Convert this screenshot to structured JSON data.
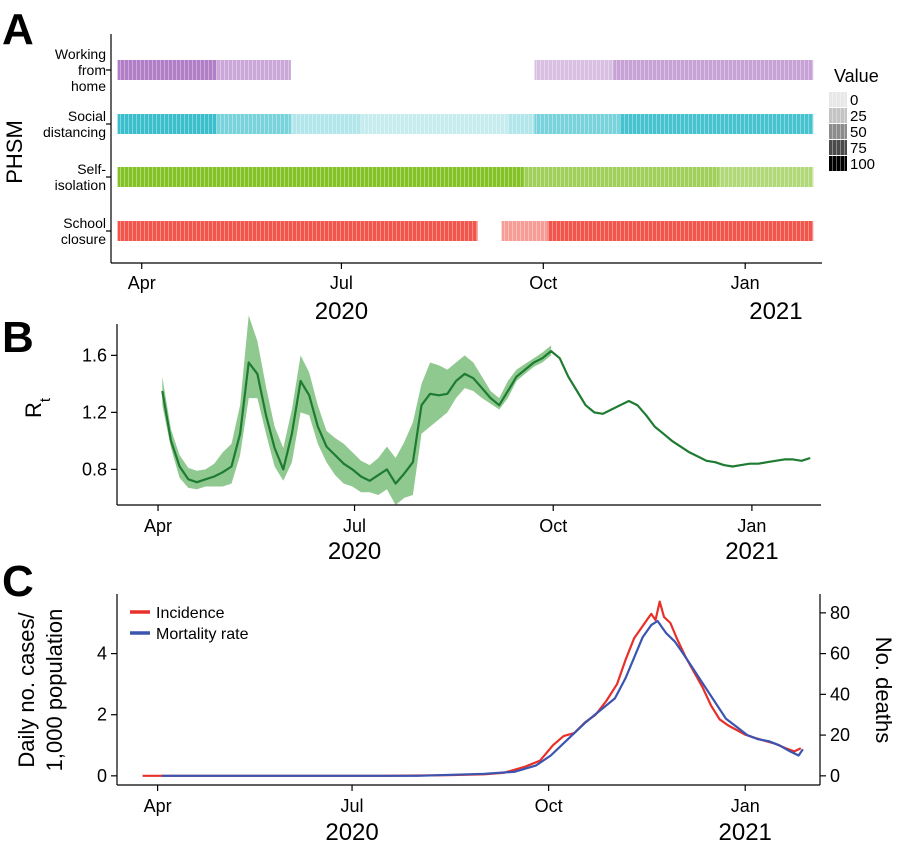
{
  "panels": [
    {
      "id": "A",
      "letter": "A"
    },
    {
      "id": "B",
      "letter": "B"
    },
    {
      "id": "C",
      "letter": "C"
    }
  ],
  "chart_data": [
    {
      "panel": "A",
      "type": "heatmap",
      "ylabel": "PHSM",
      "xlim": [
        "2020-03-18",
        "2021-02-05"
      ],
      "x_ticks": [
        {
          "date": "2020-04-01",
          "label": "Apr"
        },
        {
          "date": "2020-07-01",
          "label": "Jul"
        },
        {
          "date": "2020-10-01",
          "label": "Oct"
        },
        {
          "date": "2021-01-01",
          "label": "Jan"
        }
      ],
      "year_labels": [
        {
          "label": "2020",
          "date": "2020-07-01"
        },
        {
          "label": "2021",
          "date": "2021-01-15"
        }
      ],
      "legend": {
        "title": "Value",
        "placement": "right",
        "levels": [
          {
            "label": "0",
            "value": 0
          },
          {
            "label": "25",
            "value": 25
          },
          {
            "label": "50",
            "value": 50
          },
          {
            "label": "75",
            "value": 75
          },
          {
            "label": "100",
            "value": 100
          }
        ]
      },
      "rows": [
        {
          "lines": [
            "Working",
            "from",
            "home"
          ],
          "color": "#9b59b6",
          "segments": [
            {
              "start": "2020-03-21",
              "end": "2020-05-05",
              "value": 75
            },
            {
              "start": "2020-05-05",
              "end": "2020-06-08",
              "value": 45
            },
            {
              "start": "2020-09-27",
              "end": "2020-11-02",
              "value": 30
            },
            {
              "start": "2020-11-02",
              "end": "2021-02-01",
              "value": 50
            }
          ]
        },
        {
          "lines": [
            "Social",
            "distancing"
          ],
          "color": "#1fb5c4",
          "segments": [
            {
              "start": "2020-03-21",
              "end": "2020-05-05",
              "value": 85
            },
            {
              "start": "2020-05-05",
              "end": "2020-06-08",
              "value": 55
            },
            {
              "start": "2020-06-08",
              "end": "2020-07-10",
              "value": 25
            },
            {
              "start": "2020-07-10",
              "end": "2020-09-15",
              "value": 15
            },
            {
              "start": "2020-09-15",
              "end": "2020-09-27",
              "value": 25
            },
            {
              "start": "2020-09-27",
              "end": "2020-11-05",
              "value": 55
            },
            {
              "start": "2020-11-05",
              "end": "2021-02-01",
              "value": 80
            }
          ]
        },
        {
          "lines": [
            "Self-",
            "isolation"
          ],
          "color": "#7fbf1f",
          "segments": [
            {
              "start": "2020-03-21",
              "end": "2020-09-22",
              "value": 95
            },
            {
              "start": "2020-09-22",
              "end": "2020-12-20",
              "value": 70
            },
            {
              "start": "2020-12-20",
              "end": "2021-02-01",
              "value": 55
            }
          ]
        },
        {
          "lines": [
            "School",
            "closure"
          ],
          "color": "#f0443a",
          "segments": [
            {
              "start": "2020-03-21",
              "end": "2020-09-01",
              "value": 90
            },
            {
              "start": "2020-09-12",
              "end": "2020-10-03",
              "value": 45
            },
            {
              "start": "2020-10-03",
              "end": "2021-02-01",
              "value": 90
            }
          ]
        }
      ]
    },
    {
      "panel": "B",
      "type": "line",
      "ylabel": "R",
      "ylabel_sub": "t",
      "ylim": [
        0.55,
        1.82
      ],
      "y_ticks": [
        0.8,
        1.2,
        1.6
      ],
      "y_tick_labels": [
        "0.8",
        "1.2",
        "1.6"
      ],
      "xlim": [
        "2020-03-13",
        "2021-02-02"
      ],
      "x_ticks": [
        {
          "date": "2020-04-01",
          "label": "Apr"
        },
        {
          "date": "2020-07-01",
          "label": "Jul"
        },
        {
          "date": "2020-10-01",
          "label": "Oct"
        },
        {
          "date": "2021-01-01",
          "label": "Jan"
        }
      ],
      "year_labels": [
        {
          "label": "2020",
          "date": "2020-07-01"
        },
        {
          "label": "2021",
          "date": "2021-01-01"
        }
      ],
      "line_color": "#1e7b32",
      "band_color": "#7cbf7c",
      "series": [
        {
          "x": [
            "2020-04-03",
            "2020-04-07",
            "2020-04-11",
            "2020-04-15",
            "2020-04-19",
            "2020-04-23",
            "2020-04-27",
            "2020-05-01",
            "2020-05-05",
            "2020-05-09",
            "2020-05-13",
            "2020-05-17",
            "2020-05-21",
            "2020-05-25",
            "2020-05-29",
            "2020-06-02",
            "2020-06-06",
            "2020-06-10",
            "2020-06-14",
            "2020-06-18",
            "2020-06-22",
            "2020-06-26",
            "2020-06-30",
            "2020-07-04",
            "2020-07-08",
            "2020-07-12",
            "2020-07-16",
            "2020-07-20",
            "2020-07-24",
            "2020-07-28",
            "2020-08-01",
            "2020-08-05",
            "2020-08-09",
            "2020-08-13",
            "2020-08-17",
            "2020-08-21",
            "2020-08-25",
            "2020-08-29",
            "2020-09-02",
            "2020-09-06",
            "2020-09-10",
            "2020-09-14",
            "2020-09-18",
            "2020-09-22",
            "2020-09-26",
            "2020-09-30",
            "2020-10-04",
            "2020-10-08",
            "2020-10-12",
            "2020-10-16",
            "2020-10-20",
            "2020-10-24",
            "2020-10-28",
            "2020-11-01",
            "2020-11-05",
            "2020-11-09",
            "2020-11-13",
            "2020-11-17",
            "2020-11-21",
            "2020-11-25",
            "2020-11-29",
            "2020-12-03",
            "2020-12-07",
            "2020-12-11",
            "2020-12-15",
            "2020-12-19",
            "2020-12-23",
            "2020-12-27",
            "2020-12-31",
            "2021-01-04",
            "2021-01-08",
            "2021-01-12",
            "2021-01-16",
            "2021-01-20",
            "2021-01-24",
            "2021-01-28"
          ],
          "values": [
            1.35,
            1.0,
            0.82,
            0.73,
            0.71,
            0.73,
            0.75,
            0.78,
            0.82,
            1.05,
            1.55,
            1.47,
            1.18,
            0.95,
            0.8,
            1.05,
            1.42,
            1.32,
            1.1,
            0.96,
            0.9,
            0.84,
            0.8,
            0.75,
            0.72,
            0.76,
            0.8,
            0.7,
            0.77,
            0.85,
            1.25,
            1.33,
            1.32,
            1.33,
            1.42,
            1.47,
            1.44,
            1.37,
            1.3,
            1.25,
            1.35,
            1.45,
            1.5,
            1.55,
            1.58,
            1.63,
            1.58,
            1.45,
            1.35,
            1.25,
            1.2,
            1.19,
            1.22,
            1.25,
            1.28,
            1.25,
            1.18,
            1.1,
            1.05,
            1.0,
            0.96,
            0.92,
            0.89,
            0.86,
            0.85,
            0.83,
            0.82,
            0.83,
            0.84,
            0.84,
            0.85,
            0.86,
            0.87,
            0.87,
            0.86,
            0.88
          ]
        }
      ],
      "band": {
        "end": "2020-10-01",
        "lower": [
          1.25,
          0.95,
          0.74,
          0.67,
          0.66,
          0.68,
          0.68,
          0.68,
          0.7,
          0.9,
          1.3,
          1.3,
          1.05,
          0.82,
          0.72,
          0.85,
          1.2,
          1.18,
          0.98,
          0.85,
          0.76,
          0.7,
          0.68,
          0.64,
          0.64,
          0.62,
          0.66,
          0.55,
          0.6,
          0.62,
          1.05,
          1.1,
          1.15,
          1.2,
          1.3,
          1.37,
          1.35,
          1.3,
          1.26,
          1.22,
          1.3,
          1.42,
          1.47,
          1.52,
          1.55,
          1.6
        ],
        "upper": [
          1.45,
          1.08,
          0.9,
          0.81,
          0.79,
          0.8,
          0.84,
          0.92,
          0.98,
          1.25,
          1.88,
          1.7,
          1.38,
          1.1,
          0.95,
          1.22,
          1.6,
          1.48,
          1.25,
          1.07,
          1.02,
          0.98,
          0.92,
          0.86,
          0.83,
          0.88,
          0.96,
          0.88,
          0.99,
          1.13,
          1.4,
          1.55,
          1.53,
          1.5,
          1.55,
          1.6,
          1.55,
          1.45,
          1.35,
          1.3,
          1.42,
          1.5,
          1.54,
          1.58,
          1.62,
          1.67
        ]
      }
    },
    {
      "panel": "C",
      "type": "line",
      "ylabel_lines": [
        "Daily no. cases/",
        "1,000 population"
      ],
      "y2label": "No. deaths",
      "ylim": [
        -0.3,
        5.95
      ],
      "y_ticks": [
        0,
        2,
        4
      ],
      "y_tick_labels": [
        "0",
        "2",
        "4"
      ],
      "y2lim": [
        -4.5,
        89.25
      ],
      "y2_ticks": [
        0,
        20,
        40,
        60,
        80
      ],
      "y2_tick_labels": [
        "0",
        "20",
        "40",
        "60",
        "80"
      ],
      "xlim": [
        "2020-03-13",
        "2021-02-05"
      ],
      "x_ticks": [
        {
          "date": "2020-04-01",
          "label": "Apr"
        },
        {
          "date": "2020-07-01",
          "label": "Jul"
        },
        {
          "date": "2020-10-01",
          "label": "Oct"
        },
        {
          "date": "2021-01-01",
          "label": "Jan"
        }
      ],
      "year_labels": [
        {
          "label": "2020",
          "date": "2020-07-01"
        },
        {
          "label": "2021",
          "date": "2021-01-01"
        }
      ],
      "legend": {
        "placement": "top-left"
      },
      "series": [
        {
          "name": "Incidence",
          "color": "#e8302a",
          "axis": "left",
          "x": [
            "2020-03-25",
            "2020-04-15",
            "2020-05-15",
            "2020-06-15",
            "2020-07-15",
            "2020-08-15",
            "2020-09-01",
            "2020-09-10",
            "2020-09-20",
            "2020-09-27",
            "2020-10-03",
            "2020-10-08",
            "2020-10-13",
            "2020-10-18",
            "2020-10-23",
            "2020-10-28",
            "2020-11-02",
            "2020-11-06",
            "2020-11-10",
            "2020-11-14",
            "2020-11-18",
            "2020-11-20",
            "2020-11-22",
            "2020-11-24",
            "2020-11-27",
            "2020-11-30",
            "2020-12-04",
            "2020-12-08",
            "2020-12-12",
            "2020-12-16",
            "2020-12-20",
            "2020-12-24",
            "2020-12-28",
            "2021-01-01",
            "2021-01-05",
            "2021-01-10",
            "2021-01-15",
            "2021-01-20",
            "2021-01-24",
            "2021-01-27"
          ],
          "values": [
            0.0,
            0.0,
            0.0,
            0.0,
            0.0,
            0.02,
            0.05,
            0.1,
            0.3,
            0.5,
            1.0,
            1.3,
            1.4,
            1.75,
            2.0,
            2.45,
            3.0,
            3.8,
            4.5,
            4.9,
            5.3,
            5.1,
            5.7,
            5.2,
            5.0,
            4.5,
            3.9,
            3.4,
            2.9,
            2.3,
            1.85,
            1.65,
            1.5,
            1.35,
            1.25,
            1.15,
            1.05,
            0.9,
            0.8,
            0.9
          ]
        },
        {
          "name": "Mortality rate",
          "color": "#3b54b0",
          "axis": "right",
          "x": [
            "2020-04-03",
            "2020-05-01",
            "2020-06-01",
            "2020-07-01",
            "2020-08-01",
            "2020-09-01",
            "2020-09-15",
            "2020-09-25",
            "2020-10-02",
            "2020-10-10",
            "2020-10-18",
            "2020-10-25",
            "2020-11-01",
            "2020-11-06",
            "2020-11-10",
            "2020-11-14",
            "2020-11-18",
            "2020-11-21",
            "2020-11-25",
            "2020-11-29",
            "2020-12-03",
            "2020-12-08",
            "2020-12-13",
            "2020-12-18",
            "2020-12-23",
            "2020-12-28",
            "2021-01-02",
            "2021-01-07",
            "2021-01-12",
            "2021-01-17",
            "2021-01-22",
            "2021-01-26",
            "2021-01-28"
          ],
          "values": [
            0,
            0,
            0,
            0,
            0,
            1,
            2,
            5,
            10,
            18,
            26,
            32,
            38,
            48,
            58,
            68,
            74,
            76,
            70,
            66,
            60,
            52,
            44,
            36,
            28,
            24,
            20,
            18,
            17,
            15,
            12,
            10,
            13
          ]
        }
      ]
    }
  ]
}
